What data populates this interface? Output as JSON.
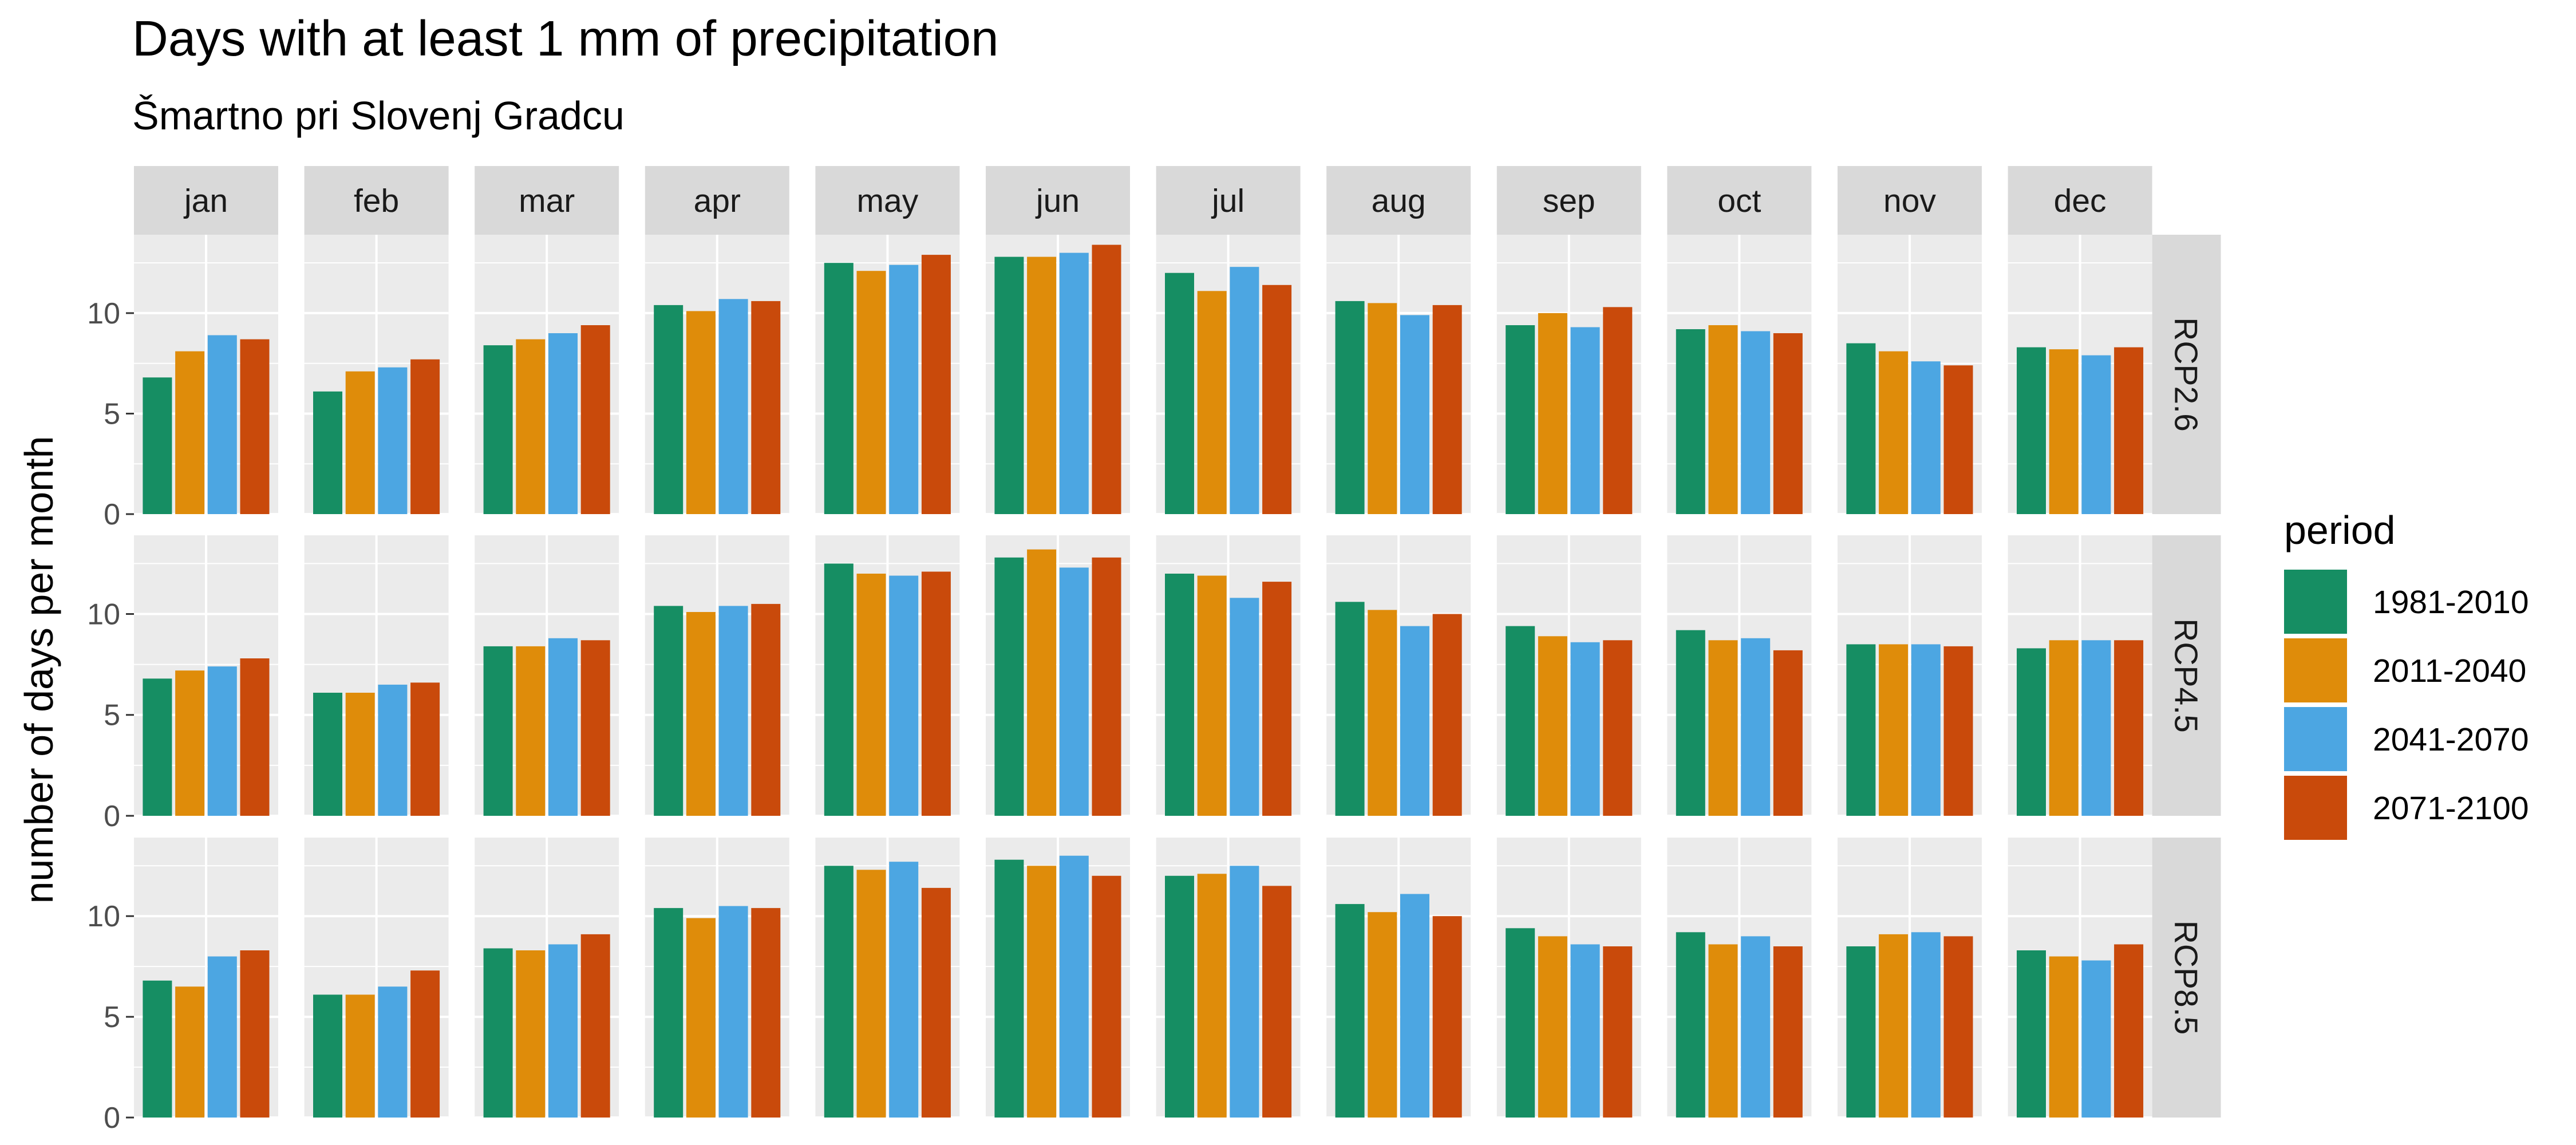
{
  "chart_data": {
    "type": "bar",
    "title": "Days with at least 1 mm of precipitation",
    "subtitle": "Šmartno pri Slovenj Gradcu",
    "ylabel": "number of days per month",
    "xlabel": "",
    "ylim": [
      0,
      13.9
    ],
    "y_ticks": [
      0,
      5,
      10
    ],
    "grid": true,
    "legend_position": "right",
    "legend_title": "period",
    "months": [
      "jan",
      "feb",
      "mar",
      "apr",
      "may",
      "jun",
      "jul",
      "aug",
      "sep",
      "oct",
      "nov",
      "dec"
    ],
    "periods": [
      {
        "name": "1981-2010",
        "color": "#168E63"
      },
      {
        "name": "2011-2040",
        "color": "#DF8C0A"
      },
      {
        "name": "2041-2070",
        "color": "#4CA6E2"
      },
      {
        "name": "2071-2100",
        "color": "#C94A0B"
      }
    ],
    "scenarios": [
      {
        "name": "RCP2.6",
        "values": [
          [
            6.8,
            8.1,
            8.9,
            8.7
          ],
          [
            6.1,
            7.1,
            7.3,
            7.7
          ],
          [
            8.4,
            8.7,
            9.0,
            9.4
          ],
          [
            10.4,
            10.1,
            10.7,
            10.6
          ],
          [
            12.5,
            12.1,
            12.4,
            12.9
          ],
          [
            12.8,
            12.8,
            13.0,
            13.4
          ],
          [
            12.0,
            11.1,
            12.3,
            11.4
          ],
          [
            10.6,
            10.5,
            9.9,
            10.4
          ],
          [
            9.4,
            10.0,
            9.3,
            10.3
          ],
          [
            9.2,
            9.4,
            9.1,
            9.0
          ],
          [
            8.5,
            8.1,
            7.6,
            7.4
          ],
          [
            8.3,
            8.2,
            7.9,
            8.3
          ]
        ]
      },
      {
        "name": "RCP4.5",
        "values": [
          [
            6.8,
            7.2,
            7.4,
            7.8
          ],
          [
            6.1,
            6.1,
            6.5,
            6.6
          ],
          [
            8.4,
            8.4,
            8.8,
            8.7
          ],
          [
            10.4,
            10.1,
            10.4,
            10.5
          ],
          [
            12.5,
            12.0,
            11.9,
            12.1
          ],
          [
            12.8,
            13.2,
            12.3,
            12.8
          ],
          [
            12.0,
            11.9,
            10.8,
            11.6
          ],
          [
            10.6,
            10.2,
            9.4,
            10.0
          ],
          [
            9.4,
            8.9,
            8.6,
            8.7
          ],
          [
            9.2,
            8.7,
            8.8,
            8.2
          ],
          [
            8.5,
            8.5,
            8.5,
            8.4
          ],
          [
            8.3,
            8.7,
            8.7,
            8.7
          ]
        ]
      },
      {
        "name": "RCP8.5",
        "values": [
          [
            6.8,
            6.5,
            8.0,
            8.3
          ],
          [
            6.1,
            6.1,
            6.5,
            7.3
          ],
          [
            8.4,
            8.3,
            8.6,
            9.1
          ],
          [
            10.4,
            9.9,
            10.5,
            10.4
          ],
          [
            12.5,
            12.3,
            12.7,
            11.4
          ],
          [
            12.8,
            12.5,
            13.0,
            12.0
          ],
          [
            12.0,
            12.1,
            12.5,
            11.5
          ],
          [
            10.6,
            10.2,
            11.1,
            10.0
          ],
          [
            9.4,
            9.0,
            8.6,
            8.5
          ],
          [
            9.2,
            8.6,
            9.0,
            8.5
          ],
          [
            8.5,
            9.1,
            9.2,
            9.0
          ],
          [
            8.3,
            8.0,
            7.8,
            8.6
          ]
        ]
      }
    ]
  }
}
